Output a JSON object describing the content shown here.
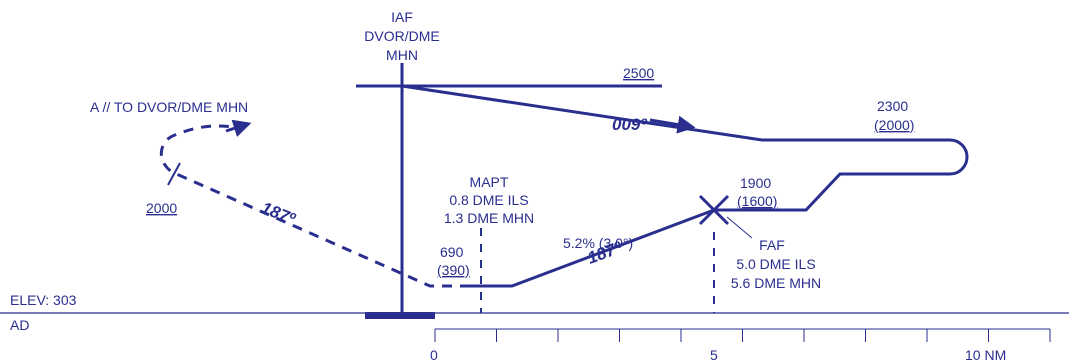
{
  "fix_labels": {
    "iaf": "IAF",
    "iaf_nav": "DVOR/DME",
    "iaf_ident": "MHN",
    "mapt": "MAPT",
    "mapt_ils": "0.8 DME ILS",
    "mapt_mhn": "1.3 DME MHN",
    "faf": "FAF",
    "faf_ils": "5.0 DME ILS",
    "faf_mhn": "5.6 DME MHN"
  },
  "altitudes": {
    "top": "2500",
    "right": "2300",
    "right_height": "(2000)",
    "faf_alt": "1900",
    "faf_height": "(1600)",
    "mapt_alt": "690",
    "mapt_height": "(390)",
    "missed": "2000"
  },
  "tracks": {
    "outbound": "009º",
    "inbound": "187º",
    "missed": "187º",
    "gradient": "5.2% (3.0°)"
  },
  "notes": {
    "missed_instruction": "A // TO DVOR/DME MHN",
    "elevation": "ELEV: 303",
    "aerodrome": "AD"
  },
  "scale": {
    "start": "0",
    "mid": "5",
    "end": "10 NM",
    "ticks": 10
  },
  "colors": {
    "ink": "#2a2f8f"
  }
}
